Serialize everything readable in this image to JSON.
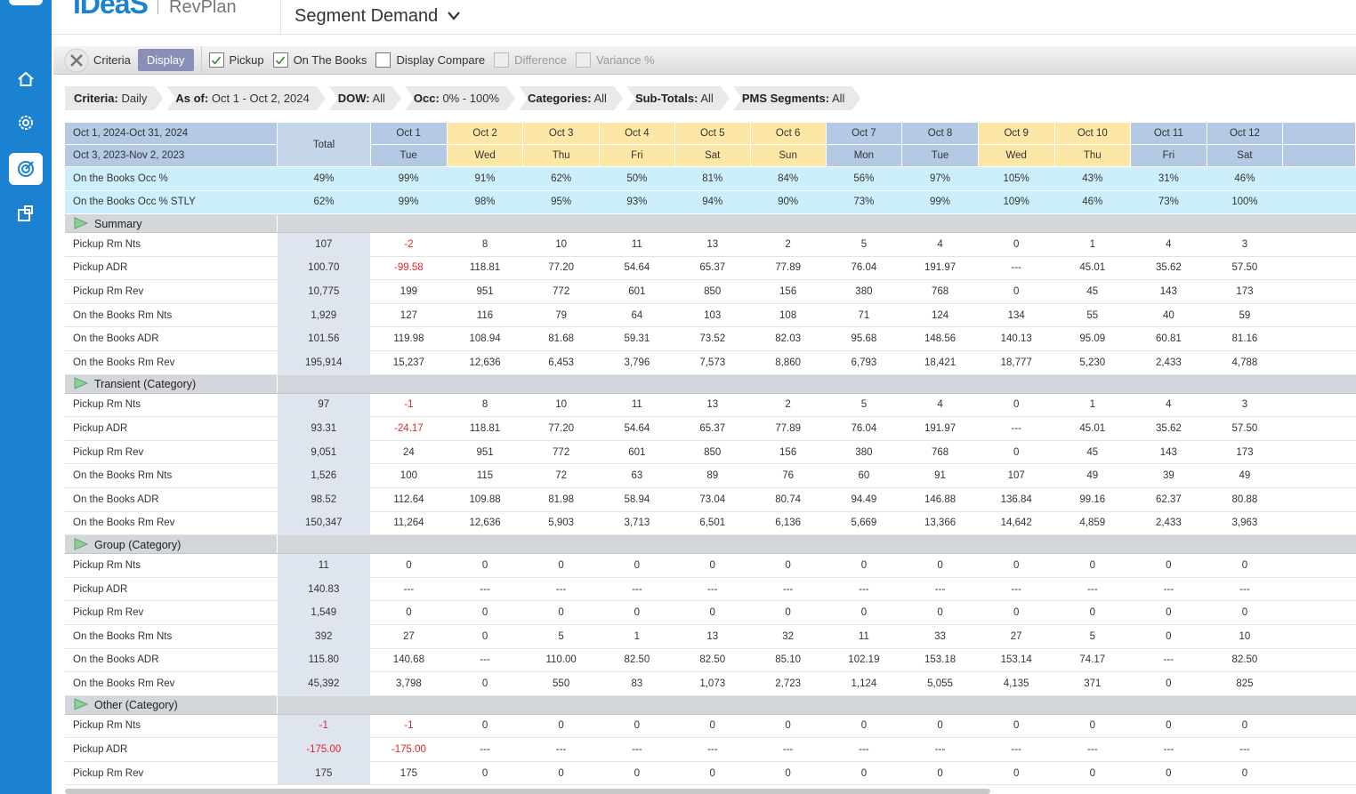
{
  "header": {
    "logo": "IDeaS",
    "product": "RevPlan",
    "page_title": "Segment Demand"
  },
  "toolbar": {
    "criteria": "Criteria",
    "display": "Display",
    "options": [
      {
        "label": "Pickup",
        "checked": true,
        "disabled": false
      },
      {
        "label": "On The Books",
        "checked": true,
        "disabled": false
      },
      {
        "label": "Display Compare",
        "checked": false,
        "disabled": false
      },
      {
        "label": "Difference",
        "checked": false,
        "disabled": true
      },
      {
        "label": "Variance %",
        "checked": false,
        "disabled": true
      }
    ]
  },
  "filters": [
    {
      "label": "Criteria:",
      "value": "Daily"
    },
    {
      "label": "As of:",
      "value": "Oct 1 - Oct 2, 2024"
    },
    {
      "label": "DOW:",
      "value": "All"
    },
    {
      "label": "Occ:",
      "value": "0% - 100%"
    },
    {
      "label": "Categories:",
      "value": "All"
    },
    {
      "label": "Sub-Totals:",
      "value": "All"
    },
    {
      "label": "PMS Segments:",
      "value": "All"
    }
  ],
  "table": {
    "period": "Oct 1, 2024-Oct 31, 2024",
    "compare_period": "Oct 3, 2023-Nov 2, 2023",
    "total_label": "Total",
    "columns": [
      {
        "date": "Oct 1",
        "dow": "Tue",
        "color": "#b3c9e4"
      },
      {
        "date": "Oct 2",
        "dow": "Wed",
        "color": "#fde7a6"
      },
      {
        "date": "Oct 3",
        "dow": "Thu",
        "color": "#fde7a6"
      },
      {
        "date": "Oct 4",
        "dow": "Fri",
        "color": "#fde7a6"
      },
      {
        "date": "Oct 5",
        "dow": "Sat",
        "color": "#fde7a6"
      },
      {
        "date": "Oct 6",
        "dow": "Sun",
        "color": "#fde7a6"
      },
      {
        "date": "Oct 7",
        "dow": "Mon",
        "color": "#b3c9e4"
      },
      {
        "date": "Oct 8",
        "dow": "Tue",
        "color": "#b3c9e4"
      },
      {
        "date": "Oct 9",
        "dow": "Wed",
        "color": "#fde7a6"
      },
      {
        "date": "Oct 10",
        "dow": "Thu",
        "color": "#fde7a6"
      },
      {
        "date": "Oct 11",
        "dow": "Fri",
        "color": "#b3c9e4"
      },
      {
        "date": "Oct 12",
        "dow": "Sat",
        "color": "#b3c9e4"
      }
    ],
    "occupancy_rows": [
      {
        "label": "On the Books Occ %",
        "total": "49%",
        "values": [
          "99%",
          "91%",
          "62%",
          "50%",
          "81%",
          "84%",
          "56%",
          "97%",
          "105%",
          "43%",
          "31%",
          "46%"
        ]
      },
      {
        "label": "On the Books Occ % STLY",
        "total": "62%",
        "values": [
          "99%",
          "98%",
          "95%",
          "93%",
          "94%",
          "90%",
          "73%",
          "99%",
          "109%",
          "46%",
          "73%",
          "100%"
        ]
      }
    ],
    "sections": [
      {
        "name": "Summary",
        "rows": [
          {
            "label": "Pickup Rm Nts",
            "total": "107",
            "values": [
              "-2",
              "8",
              "10",
              "11",
              "13",
              "2",
              "5",
              "4",
              "0",
              "1",
              "4",
              "3"
            ]
          },
          {
            "label": "Pickup ADR",
            "total": "100.70",
            "values": [
              "-99.58",
              "118.81",
              "77.20",
              "54.64",
              "65.37",
              "77.89",
              "76.04",
              "191.97",
              "---",
              "45.01",
              "35.62",
              "57.50"
            ]
          },
          {
            "label": "Pickup Rm Rev",
            "total": "10,775",
            "values": [
              "199",
              "951",
              "772",
              "601",
              "850",
              "156",
              "380",
              "768",
              "0",
              "45",
              "143",
              "173"
            ]
          },
          {
            "label": "On the Books Rm Nts",
            "total": "1,929",
            "values": [
              "127",
              "116",
              "79",
              "64",
              "103",
              "108",
              "71",
              "124",
              "134",
              "55",
              "40",
              "59"
            ]
          },
          {
            "label": "On the Books ADR",
            "total": "101.56",
            "values": [
              "119.98",
              "108.94",
              "81.68",
              "59.31",
              "73.52",
              "82.03",
              "95.68",
              "148.56",
              "140.13",
              "95.09",
              "60.81",
              "81.16"
            ]
          },
          {
            "label": "On the Books Rm Rev",
            "total": "195,914",
            "values": [
              "15,237",
              "12,636",
              "6,453",
              "3,796",
              "7,573",
              "8,860",
              "6,793",
              "18,421",
              "18,777",
              "5,230",
              "2,433",
              "4,788"
            ]
          }
        ]
      },
      {
        "name": "Transient (Category)",
        "rows": [
          {
            "label": "Pickup Rm Nts",
            "total": "97",
            "values": [
              "-1",
              "8",
              "10",
              "11",
              "13",
              "2",
              "5",
              "4",
              "0",
              "1",
              "4",
              "3"
            ]
          },
          {
            "label": "Pickup ADR",
            "total": "93.31",
            "values": [
              "-24.17",
              "118.81",
              "77.20",
              "54.64",
              "65.37",
              "77.89",
              "76.04",
              "191.97",
              "---",
              "45.01",
              "35.62",
              "57.50"
            ]
          },
          {
            "label": "Pickup Rm Rev",
            "total": "9,051",
            "values": [
              "24",
              "951",
              "772",
              "601",
              "850",
              "156",
              "380",
              "768",
              "0",
              "45",
              "143",
              "173"
            ]
          },
          {
            "label": "On the Books Rm Nts",
            "total": "1,526",
            "values": [
              "100",
              "115",
              "72",
              "63",
              "89",
              "76",
              "60",
              "91",
              "107",
              "49",
              "39",
              "49"
            ]
          },
          {
            "label": "On the Books ADR",
            "total": "98.52",
            "values": [
              "112.64",
              "109.88",
              "81.98",
              "58.94",
              "73.04",
              "80.74",
              "94.49",
              "146.88",
              "136.84",
              "99.16",
              "62.37",
              "80.88"
            ]
          },
          {
            "label": "On the Books Rm Rev",
            "total": "150,347",
            "values": [
              "11,264",
              "12,636",
              "5,903",
              "3,713",
              "6,501",
              "6,136",
              "5,669",
              "13,366",
              "14,642",
              "4,859",
              "2,433",
              "3,963"
            ]
          }
        ]
      },
      {
        "name": "Group (Category)",
        "rows": [
          {
            "label": "Pickup Rm Nts",
            "total": "11",
            "values": [
              "0",
              "0",
              "0",
              "0",
              "0",
              "0",
              "0",
              "0",
              "0",
              "0",
              "0",
              "0"
            ]
          },
          {
            "label": "Pickup ADR",
            "total": "140.83",
            "values": [
              "---",
              "---",
              "---",
              "---",
              "---",
              "---",
              "---",
              "---",
              "---",
              "---",
              "---",
              "---"
            ]
          },
          {
            "label": "Pickup Rm Rev",
            "total": "1,549",
            "values": [
              "0",
              "0",
              "0",
              "0",
              "0",
              "0",
              "0",
              "0",
              "0",
              "0",
              "0",
              "0"
            ]
          },
          {
            "label": "On the Books Rm Nts",
            "total": "392",
            "values": [
              "27",
              "0",
              "5",
              "1",
              "13",
              "32",
              "11",
              "33",
              "27",
              "5",
              "0",
              "10"
            ]
          },
          {
            "label": "On the Books ADR",
            "total": "115.80",
            "values": [
              "140.68",
              "---",
              "110.00",
              "82.50",
              "82.50",
              "85.10",
              "102.19",
              "153.18",
              "153.14",
              "74.17",
              "---",
              "82.50"
            ]
          },
          {
            "label": "On the Books Rm Rev",
            "total": "45,392",
            "values": [
              "3,798",
              "0",
              "550",
              "83",
              "1,073",
              "2,723",
              "1,124",
              "5,055",
              "4,135",
              "371",
              "0",
              "825"
            ]
          }
        ]
      },
      {
        "name": "Other (Category)",
        "rows": [
          {
            "label": "Pickup Rm Nts",
            "total": "-1",
            "values": [
              "-1",
              "0",
              "0",
              "0",
              "0",
              "0",
              "0",
              "0",
              "0",
              "0",
              "0",
              "0"
            ]
          },
          {
            "label": "Pickup ADR",
            "total": "-175.00",
            "values": [
              "-175.00",
              "---",
              "---",
              "---",
              "---",
              "---",
              "---",
              "---",
              "---",
              "---",
              "---",
              "---"
            ]
          },
          {
            "label": "Pickup Rm Rev",
            "total": "175",
            "values": [
              "175",
              "0",
              "0",
              "0",
              "0",
              "0",
              "0",
              "0",
              "0",
              "0",
              "0",
              "0"
            ]
          }
        ]
      }
    ]
  }
}
